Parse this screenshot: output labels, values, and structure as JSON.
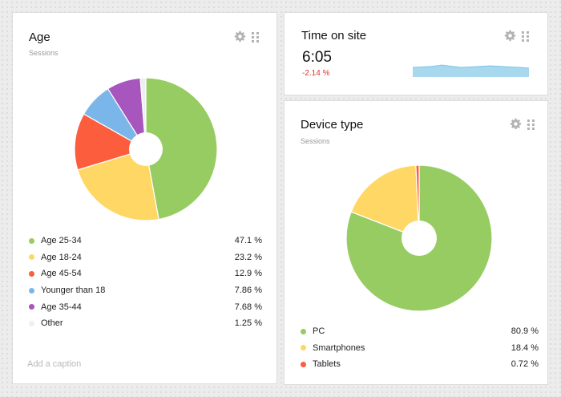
{
  "age_widget": {
    "title": "Age",
    "subtitle": "Sessions",
    "caption_placeholder": "Add a caption",
    "items": [
      {
        "label": "Age 25-34",
        "value": 47.1,
        "display": "47.1 %",
        "color": "#96cc62"
      },
      {
        "label": "Age 18-24",
        "value": 23.2,
        "display": "23.2 %",
        "color": "#ffd764"
      },
      {
        "label": "Age 45-54",
        "value": 12.9,
        "display": "12.9 %",
        "color": "#fb5d3d"
      },
      {
        "label": "Younger than 18",
        "value": 7.86,
        "display": "7.86 %",
        "color": "#7bb6ea"
      },
      {
        "label": "Age 35-44",
        "value": 7.68,
        "display": "7.68 %",
        "color": "#a656bc"
      },
      {
        "label": "Other",
        "value": 1.25,
        "display": "1.25 %",
        "color": "#efefef"
      }
    ]
  },
  "time_widget": {
    "title": "Time on site",
    "value": "6:05",
    "delta": "-2.14 %",
    "sparkline_color": "#a7d8ee",
    "sparkline": [
      0.5,
      0.52,
      0.55,
      0.62,
      0.56,
      0.5,
      0.52,
      0.55,
      0.58,
      0.55,
      0.52,
      0.5,
      0.46
    ]
  },
  "device_widget": {
    "title": "Device type",
    "subtitle": "Sessions",
    "items": [
      {
        "label": "PC",
        "value": 80.9,
        "display": "80.9 %",
        "color": "#96cc62"
      },
      {
        "label": "Smartphones",
        "value": 18.4,
        "display": "18.4 %",
        "color": "#ffd764"
      },
      {
        "label": "Tablets",
        "value": 0.72,
        "display": "0.72 %",
        "color": "#fb5d3d"
      }
    ]
  },
  "icons": {
    "settings": "gear-icon",
    "drag": "drag-handle-icon",
    "gear_color": "#b3b3b3"
  }
}
